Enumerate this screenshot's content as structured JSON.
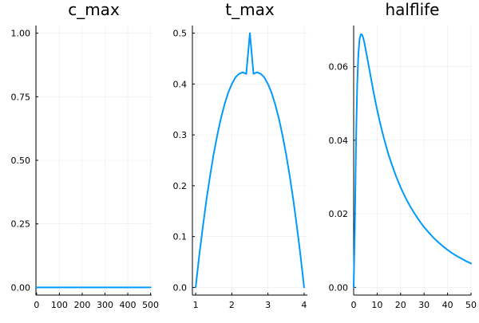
{
  "colors": {
    "series": "#009AFA",
    "grid": "#000000"
  },
  "chart_data": [
    {
      "type": "line",
      "title": "c_max",
      "xlim": [
        -3,
        505
      ],
      "ylim": [
        -0.03,
        1.03
      ],
      "xticks": [
        0,
        100,
        200,
        300,
        400,
        500
      ],
      "xtick_labels": [
        "0",
        "100",
        "200",
        "300",
        "400",
        "500"
      ],
      "yticks": [
        0,
        0.25,
        0.5,
        0.75,
        1
      ],
      "ytick_labels": [
        "0.00",
        "0.25",
        "0.50",
        "0.75",
        "1.00"
      ],
      "grid": true,
      "legend": "none",
      "series": [
        {
          "x": [
            0,
            50,
            100,
            150,
            200,
            250,
            300,
            350,
            400,
            450,
            500
          ],
          "y": [
            0,
            0,
            0,
            0,
            0,
            0,
            0,
            0,
            0,
            0,
            0
          ]
        }
      ]
    },
    {
      "type": "line",
      "title": "t_max",
      "xlim": [
        0.91,
        4.09
      ],
      "ylim": [
        -0.015,
        0.515
      ],
      "xticks": [
        1,
        2,
        3,
        4
      ],
      "xtick_labels": [
        "1",
        "2",
        "3",
        "4"
      ],
      "yticks": [
        0,
        0.1,
        0.2,
        0.3,
        0.4,
        0.5
      ],
      "ytick_labels": [
        "0.0",
        "0.1",
        "0.2",
        "0.3",
        "0.4",
        "0.5"
      ],
      "grid": true,
      "legend": "none",
      "series": [
        {
          "x": [
            1,
            1.1,
            1.2,
            1.3,
            1.4,
            1.5,
            1.6,
            1.7,
            1.8,
            1.9,
            2,
            2.1,
            2.2,
            2.3,
            2.4,
            2.5,
            2.6,
            2.7,
            2.8,
            2.9,
            3,
            3.1,
            3.2,
            3.3,
            3.4,
            3.5,
            3.6,
            3.7,
            3.8,
            3.9,
            4
          ],
          "y": [
            0,
            0.063,
            0.12,
            0.173,
            0.22,
            0.263,
            0.3,
            0.333,
            0.36,
            0.383,
            0.4,
            0.413,
            0.42,
            0.423,
            0.42,
            0.5,
            0.42,
            0.423,
            0.42,
            0.413,
            0.4,
            0.383,
            0.36,
            0.333,
            0.3,
            0.263,
            0.22,
            0.173,
            0.12,
            0.063,
            0
          ]
        }
      ]
    },
    {
      "type": "line",
      "title": "halflife",
      "xlim": [
        0,
        50
      ],
      "ylim": [
        -0.0021,
        0.0712
      ],
      "xticks": [
        0,
        10,
        20,
        30,
        40,
        50
      ],
      "xtick_labels": [
        "0",
        "10",
        "20",
        "30",
        "40",
        "50"
      ],
      "yticks": [
        0,
        0.02,
        0.04,
        0.06
      ],
      "ytick_labels": [
        "0.00",
        "0.02",
        "0.04",
        "0.06"
      ],
      "grid": true,
      "legend": "none",
      "series": [
        {
          "x": [
            0,
            0.5,
            1,
            1.5,
            2,
            2.5,
            3,
            3.5,
            4,
            4.5,
            5,
            6,
            7,
            8,
            9,
            10,
            11,
            12,
            13,
            14,
            15,
            16,
            18,
            20,
            22,
            24,
            26,
            28,
            30,
            32,
            34,
            36,
            38,
            40,
            42,
            44,
            46,
            48,
            50
          ],
          "y": [
            0,
            0.0163,
            0.0392,
            0.0547,
            0.0634,
            0.0674,
            0.0688,
            0.0688,
            0.068,
            0.0667,
            0.0651,
            0.0617,
            0.0582,
            0.0547,
            0.0514,
            0.0483,
            0.0454,
            0.0428,
            0.0403,
            0.038,
            0.0358,
            0.0339,
            0.0303,
            0.0272,
            0.0245,
            0.0221,
            0.02,
            0.0181,
            0.0164,
            0.0149,
            0.0135,
            0.0123,
            0.0112,
            0.0102,
            0.0093,
            0.0085,
            0.0078,
            0.0071,
            0.0065
          ]
        }
      ]
    }
  ]
}
